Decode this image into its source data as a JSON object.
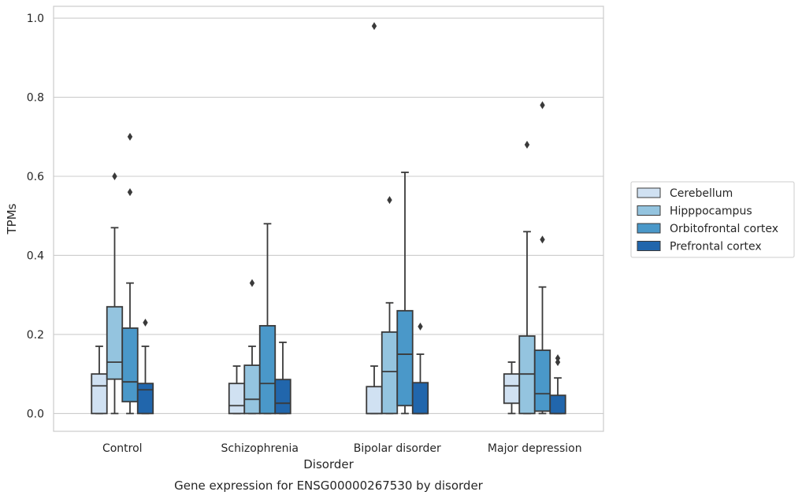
{
  "caption": "Gene expression for ENSG00000267530 by disorder",
  "chart_data": {
    "type": "box",
    "xlabel": "Disorder",
    "ylabel": "TPMs",
    "ylim": [
      -0.045,
      1.03
    ],
    "yticks": [
      0.0,
      0.2,
      0.4,
      0.6,
      0.8,
      1.0
    ],
    "ytick_labels": [
      "0.0",
      "0.2",
      "0.4",
      "0.6",
      "0.8",
      "1.0"
    ],
    "categories": [
      "Control",
      "Schizophrenia",
      "Bipolar disorder",
      "Major depression"
    ],
    "grid": "horizontal",
    "legend_position": "right",
    "series": [
      {
        "name": "Cerebellum",
        "color": "#d0e1f2",
        "boxes": [
          {
            "whisker_low": 0.0,
            "q1": 0.0,
            "median": 0.07,
            "q3": 0.1,
            "whisker_high": 0.17,
            "outliers": []
          },
          {
            "whisker_low": 0.0,
            "q1": 0.0,
            "median": 0.02,
            "q3": 0.076,
            "whisker_high": 0.12,
            "outliers": []
          },
          {
            "whisker_low": 0.0,
            "q1": 0.0,
            "median": 0.0,
            "q3": 0.068,
            "whisker_high": 0.12,
            "outliers": [
              0.98
            ]
          },
          {
            "whisker_low": 0.0,
            "q1": 0.026,
            "median": 0.07,
            "q3": 0.1,
            "whisker_high": 0.13,
            "outliers": []
          }
        ]
      },
      {
        "name": "Hipppocampus",
        "color": "#94c4df",
        "boxes": [
          {
            "whisker_low": 0.0,
            "q1": 0.087,
            "median": 0.13,
            "q3": 0.27,
            "whisker_high": 0.47,
            "outliers": [
              0.6
            ]
          },
          {
            "whisker_low": 0.0,
            "q1": 0.0,
            "median": 0.036,
            "q3": 0.122,
            "whisker_high": 0.17,
            "outliers": [
              0.33
            ]
          },
          {
            "whisker_low": 0.0,
            "q1": 0.0,
            "median": 0.106,
            "q3": 0.206,
            "whisker_high": 0.28,
            "outliers": [
              0.54
            ]
          },
          {
            "whisker_low": 0.0,
            "q1": 0.0,
            "median": 0.1,
            "q3": 0.196,
            "whisker_high": 0.46,
            "outliers": [
              0.68
            ]
          }
        ]
      },
      {
        "name": "Orbitofrontal cortex",
        "color": "#4a98c9",
        "boxes": [
          {
            "whisker_low": 0.0,
            "q1": 0.03,
            "median": 0.08,
            "q3": 0.216,
            "whisker_high": 0.33,
            "outliers": [
              0.56,
              0.7
            ]
          },
          {
            "whisker_low": 0.0,
            "q1": 0.0,
            "median": 0.076,
            "q3": 0.222,
            "whisker_high": 0.48,
            "outliers": []
          },
          {
            "whisker_low": 0.0,
            "q1": 0.02,
            "median": 0.15,
            "q3": 0.26,
            "whisker_high": 0.61,
            "outliers": []
          },
          {
            "whisker_low": 0.0,
            "q1": 0.006,
            "median": 0.05,
            "q3": 0.16,
            "whisker_high": 0.32,
            "outliers": [
              0.44,
              0.78
            ]
          }
        ]
      },
      {
        "name": "Prefrontal cortex",
        "color": "#2166ac",
        "boxes": [
          {
            "whisker_low": 0.0,
            "q1": 0.0,
            "median": 0.06,
            "q3": 0.076,
            "whisker_high": 0.17,
            "outliers": [
              0.23
            ]
          },
          {
            "whisker_low": 0.0,
            "q1": 0.0,
            "median": 0.026,
            "q3": 0.086,
            "whisker_high": 0.18,
            "outliers": []
          },
          {
            "whisker_low": 0.0,
            "q1": 0.0,
            "median": 0.0,
            "q3": 0.078,
            "whisker_high": 0.15,
            "outliers": [
              0.22
            ]
          },
          {
            "whisker_low": 0.0,
            "q1": 0.0,
            "median": 0.0,
            "q3": 0.046,
            "whisker_high": 0.09,
            "outliers": [
              0.13,
              0.14
            ]
          }
        ]
      }
    ]
  }
}
